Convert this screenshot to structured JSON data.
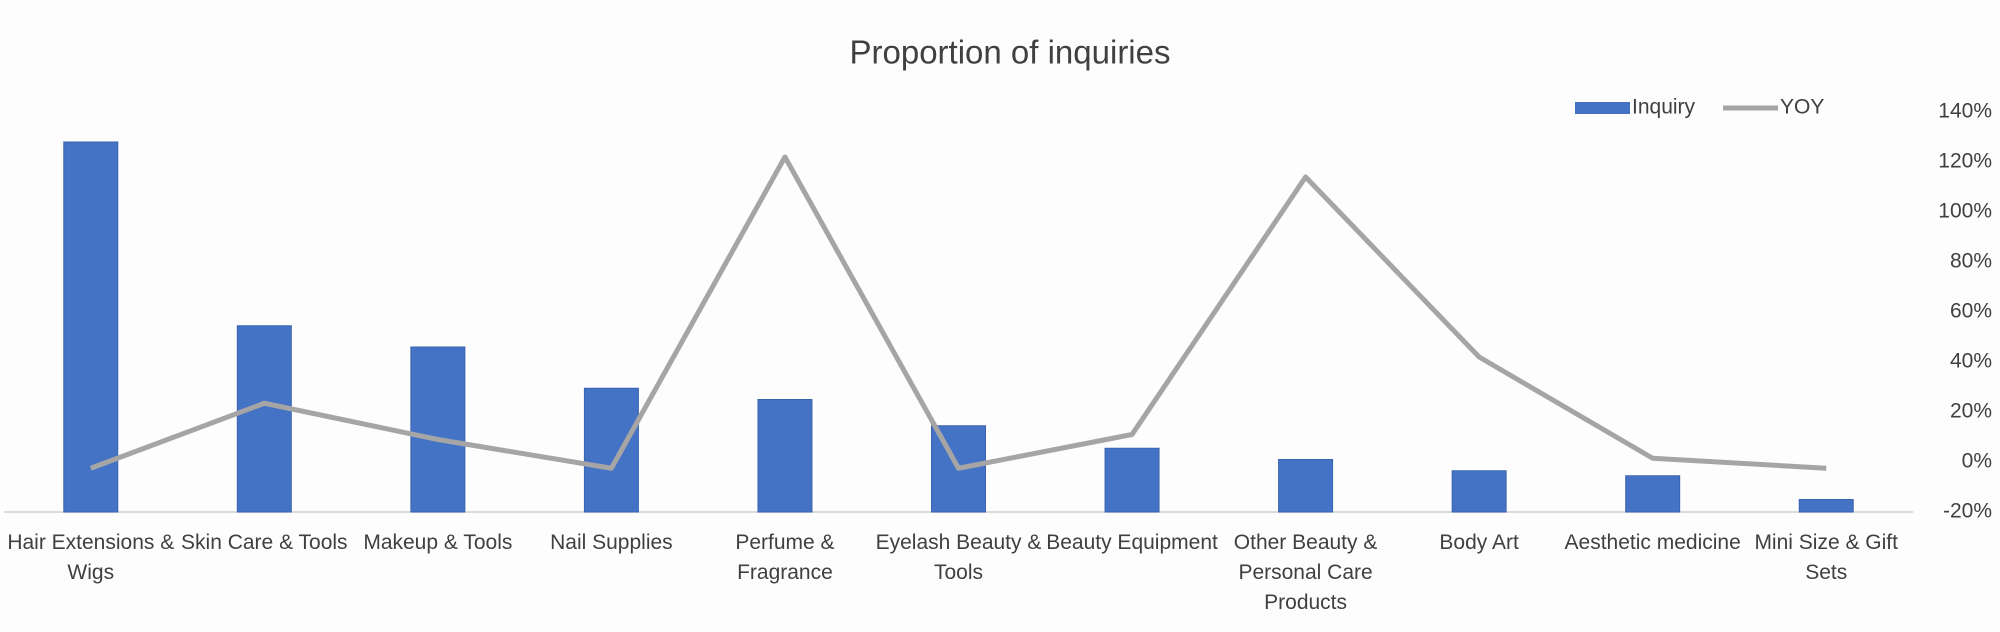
{
  "chart_data": {
    "type": "bar",
    "title": "Proportion of inquiries",
    "categories": [
      "Hair Extensions & Wigs",
      "Skin Care & Tools",
      "Makeup & Tools",
      "Nail Supplies",
      "Perfume & Fragrance",
      "Eyelash Beauty & Tools",
      "Beauty Equipment",
      "Other Beauty & Personal Care Products",
      "Body Art",
      "Aesthetic medicine",
      "Mini Size & Gift Sets"
    ],
    "series": [
      {
        "name": "Inquiry",
        "type": "bar",
        "color": "#4472c4",
        "values": [
          29.6,
          14.9,
          13.2,
          9.9,
          9.0,
          6.9,
          5.1,
          4.2,
          3.3,
          2.9,
          1.0
        ]
      },
      {
        "name": "YOY",
        "type": "line",
        "axis": "y2",
        "color": "#a5a5a5",
        "values": [
          -2.5,
          23.5,
          9,
          -2.5,
          122,
          -2.5,
          11,
          114,
          42,
          1.5,
          -2.5
        ]
      }
    ],
    "ylim": [
      0,
      32
    ],
    "y2lim": [
      -20,
      140
    ],
    "y2ticks": [
      {
        "value": -20,
        "label": "-20%"
      },
      {
        "value": 0,
        "label": "0%"
      },
      {
        "value": 20,
        "label": "20%"
      },
      {
        "value": 40,
        "label": "40%"
      },
      {
        "value": 60,
        "label": "60%"
      },
      {
        "value": 80,
        "label": "80%"
      },
      {
        "value": 100,
        "label": "100%"
      },
      {
        "value": 120,
        "label": "120%"
      },
      {
        "value": 140,
        "label": "140%"
      }
    ],
    "legend": "top-right"
  }
}
